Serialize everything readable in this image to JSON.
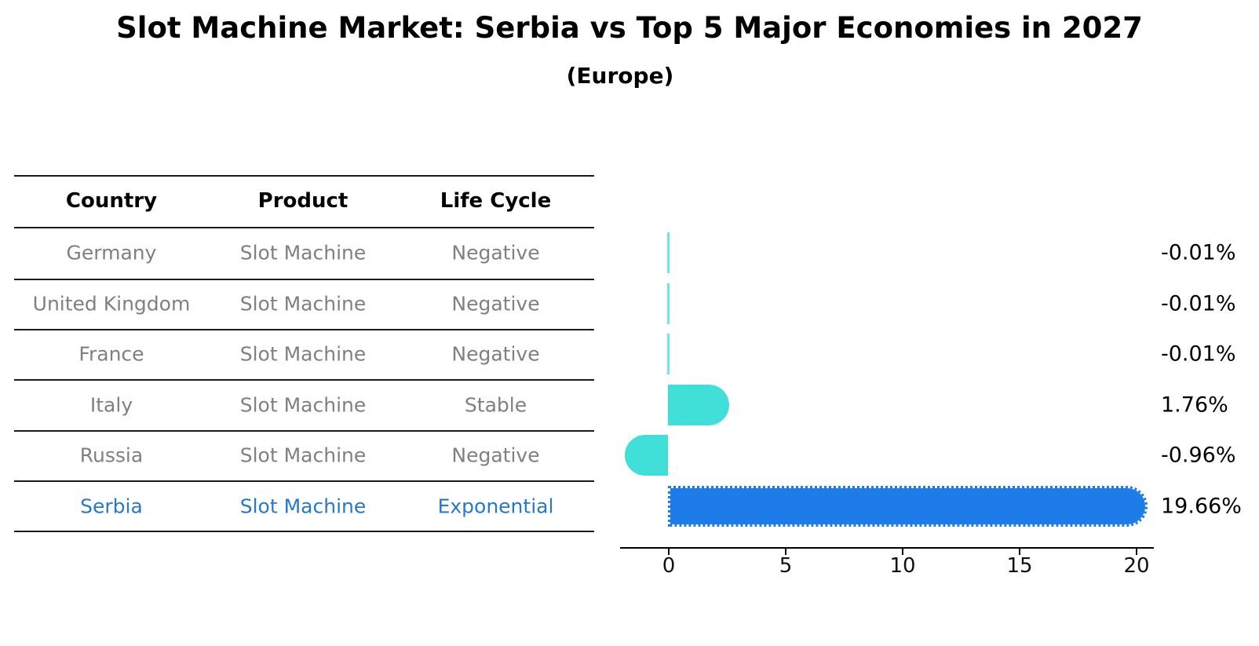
{
  "title": "Slot Machine Market: Serbia vs Top 5 Major Economies in 2027",
  "subtitle": "(Europe)",
  "table": {
    "headers": [
      "Country",
      "Product",
      "Life Cycle"
    ],
    "rows": [
      {
        "country": "Germany",
        "product": "Slot Machine",
        "life_cycle": "Negative",
        "highlight": false
      },
      {
        "country": "United Kingdom",
        "product": "Slot Machine",
        "life_cycle": "Negative",
        "highlight": false
      },
      {
        "country": "France",
        "product": "Slot Machine",
        "life_cycle": "Negative",
        "highlight": false
      },
      {
        "country": "Italy",
        "product": "Slot Machine",
        "life_cycle": "Stable",
        "highlight": false
      },
      {
        "country": "Russia",
        "product": "Slot Machine",
        "life_cycle": "Negative",
        "highlight": false
      },
      {
        "country": "Serbia",
        "product": "Slot Machine",
        "life_cycle": "Exponential",
        "highlight": true
      }
    ]
  },
  "chart_data": {
    "type": "bar",
    "orientation": "horizontal",
    "categories": [
      "Germany",
      "United Kingdom",
      "France",
      "Italy",
      "Russia",
      "Serbia"
    ],
    "values": [
      -0.01,
      -0.01,
      -0.01,
      1.76,
      -0.96,
      19.66
    ],
    "value_labels": [
      "-0.01%",
      "-0.01%",
      "-0.01%",
      "1.76%",
      "-0.96%",
      "19.66%"
    ],
    "x_ticks": [
      "0",
      "5",
      "10",
      "15",
      "20"
    ],
    "x_tick_values": [
      0,
      5,
      10,
      15,
      20
    ],
    "xlim": [
      -2.1,
      20.8
    ],
    "grid": false,
    "legend": null,
    "highlight_index": 5,
    "highlight_style": "dotted-edge",
    "colors": {
      "bar_default": "#40e0d8",
      "bar_highlight": "#1e7ce9",
      "highlight_text": "#2878cb",
      "table_text": "#808080",
      "header_text": "#000000",
      "value_label_text": "#000000",
      "axis": "#000000"
    }
  }
}
